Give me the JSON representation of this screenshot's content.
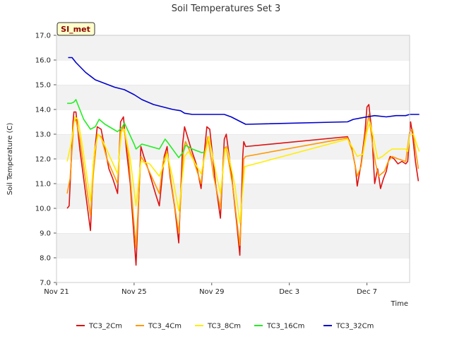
{
  "chart_data": {
    "type": "line",
    "title": "Soil Temperatures Set 3",
    "xlabel": "Time",
    "ylabel": "Soil Temperature (C)",
    "site_label": "SI_met",
    "x_ticks": [
      {
        "label": "Nov 21",
        "day": 0
      },
      {
        "label": "Nov 25",
        "day": 4
      },
      {
        "label": "Nov 29",
        "day": 8
      },
      {
        "label": "Dec 3",
        "day": 12
      },
      {
        "label": "Dec 7",
        "day": 16
      }
    ],
    "xlim_days": [
      0,
      18.2
    ],
    "x_reference_date": "2021-11-21",
    "ylim": [
      7.0,
      17.0
    ],
    "y_ticks": [
      "7.0",
      "8.0",
      "9.0",
      "10.0",
      "11.0",
      "12.0",
      "13.0",
      "14.0",
      "15.0",
      "16.0",
      "17.0"
    ],
    "grid": "horizontal bands",
    "legend_position": "bottom",
    "series": [
      {
        "name": "TC3_2Cm",
        "color": "#dd1111",
        "points": [
          [
            0.55,
            10.0
          ],
          [
            0.65,
            10.1
          ],
          [
            0.85,
            13.5
          ],
          [
            0.9,
            13.9
          ],
          [
            1.0,
            13.9
          ],
          [
            1.2,
            12.4
          ],
          [
            1.75,
            9.1
          ],
          [
            1.9,
            11.8
          ],
          [
            2.1,
            13.3
          ],
          [
            2.3,
            13.2
          ],
          [
            2.5,
            12.4
          ],
          [
            2.7,
            11.6
          ],
          [
            2.9,
            11.2
          ],
          [
            3.15,
            10.6
          ],
          [
            3.3,
            13.5
          ],
          [
            3.45,
            13.7
          ],
          [
            3.6,
            12.4
          ],
          [
            3.8,
            11.0
          ],
          [
            4.1,
            7.7
          ],
          [
            4.35,
            12.5
          ],
          [
            4.5,
            12.1
          ],
          [
            4.8,
            11.4
          ],
          [
            5.1,
            10.6
          ],
          [
            5.3,
            10.1
          ],
          [
            5.55,
            12.1
          ],
          [
            5.7,
            12.5
          ],
          [
            5.85,
            11.3
          ],
          [
            6.1,
            10.0
          ],
          [
            6.3,
            8.6
          ],
          [
            6.5,
            12.6
          ],
          [
            6.6,
            13.3
          ],
          [
            6.9,
            12.5
          ],
          [
            7.2,
            11.8
          ],
          [
            7.45,
            10.8
          ],
          [
            7.6,
            12.1
          ],
          [
            7.75,
            13.3
          ],
          [
            7.9,
            13.2
          ],
          [
            8.2,
            11.0
          ],
          [
            8.45,
            9.6
          ],
          [
            8.65,
            12.8
          ],
          [
            8.75,
            13.0
          ],
          [
            9.0,
            11.5
          ],
          [
            9.3,
            9.3
          ],
          [
            9.45,
            8.1
          ],
          [
            9.6,
            12.1
          ],
          [
            9.65,
            12.7
          ],
          [
            9.75,
            12.5
          ],
          [
            15.0,
            12.9
          ],
          [
            15.2,
            12.5
          ],
          [
            15.4,
            11.7
          ],
          [
            15.5,
            10.9
          ],
          [
            15.7,
            11.8
          ],
          [
            15.9,
            13.1
          ],
          [
            16.0,
            14.1
          ],
          [
            16.1,
            14.2
          ],
          [
            16.25,
            13.1
          ],
          [
            16.4,
            11.0
          ],
          [
            16.55,
            11.6
          ],
          [
            16.7,
            10.8
          ],
          [
            16.85,
            11.2
          ],
          [
            17.0,
            11.5
          ],
          [
            17.1,
            11.9
          ],
          [
            17.2,
            12.1
          ],
          [
            17.4,
            12.0
          ],
          [
            17.6,
            11.8
          ],
          [
            17.8,
            11.9
          ],
          [
            18.0,
            11.8
          ],
          [
            18.1,
            11.9
          ],
          [
            18.25,
            13.5
          ],
          [
            18.35,
            13.0
          ],
          [
            18.5,
            11.9
          ],
          [
            18.65,
            11.1
          ]
        ]
      },
      {
        "name": "TC3_4Cm",
        "color": "#ff9900",
        "points": [
          [
            0.55,
            10.6
          ],
          [
            0.7,
            11.2
          ],
          [
            0.9,
            13.5
          ],
          [
            1.0,
            13.6
          ],
          [
            1.2,
            12.8
          ],
          [
            1.75,
            9.7
          ],
          [
            1.9,
            11.4
          ],
          [
            2.1,
            13.0
          ],
          [
            2.3,
            12.9
          ],
          [
            2.6,
            12.0
          ],
          [
            3.15,
            11.0
          ],
          [
            3.3,
            13.1
          ],
          [
            3.45,
            13.3
          ],
          [
            3.7,
            12.2
          ],
          [
            4.1,
            8.4
          ],
          [
            4.35,
            12.1
          ],
          [
            4.6,
            11.8
          ],
          [
            5.3,
            10.6
          ],
          [
            5.5,
            11.9
          ],
          [
            5.7,
            12.3
          ],
          [
            6.0,
            10.6
          ],
          [
            6.3,
            9.0
          ],
          [
            6.55,
            12.4
          ],
          [
            6.65,
            12.7
          ],
          [
            7.0,
            12.1
          ],
          [
            7.45,
            11.0
          ],
          [
            7.65,
            12.3
          ],
          [
            7.8,
            12.9
          ],
          [
            8.1,
            11.3
          ],
          [
            8.45,
            10.0
          ],
          [
            8.65,
            12.4
          ],
          [
            8.75,
            12.5
          ],
          [
            9.1,
            10.8
          ],
          [
            9.45,
            8.5
          ],
          [
            9.65,
            12.0
          ],
          [
            9.75,
            12.1
          ],
          [
            15.0,
            12.85
          ],
          [
            15.25,
            12.3
          ],
          [
            15.5,
            11.3
          ],
          [
            15.7,
            11.7
          ],
          [
            15.9,
            12.9
          ],
          [
            16.1,
            13.8
          ],
          [
            16.3,
            12.5
          ],
          [
            16.45,
            11.8
          ],
          [
            16.6,
            11.3
          ],
          [
            16.9,
            11.5
          ],
          [
            17.1,
            11.9
          ],
          [
            17.3,
            12.1
          ],
          [
            17.6,
            12.0
          ],
          [
            18.0,
            11.9
          ],
          [
            18.2,
            13.1
          ],
          [
            18.35,
            13.2
          ],
          [
            18.5,
            12.4
          ],
          [
            18.65,
            11.6
          ]
        ]
      },
      {
        "name": "TC3_8Cm",
        "color": "#ffee00",
        "points": [
          [
            0.55,
            11.9
          ],
          [
            0.75,
            12.6
          ],
          [
            0.95,
            13.7
          ],
          [
            1.1,
            13.6
          ],
          [
            1.3,
            12.7
          ],
          [
            1.75,
            10.3
          ],
          [
            1.95,
            12.3
          ],
          [
            2.15,
            13.0
          ],
          [
            2.4,
            12.7
          ],
          [
            3.15,
            11.4
          ],
          [
            3.35,
            13.1
          ],
          [
            3.5,
            13.2
          ],
          [
            3.8,
            12.0
          ],
          [
            4.1,
            10.1
          ],
          [
            4.35,
            11.9
          ],
          [
            4.8,
            11.8
          ],
          [
            5.3,
            11.3
          ],
          [
            5.55,
            11.8
          ],
          [
            5.7,
            12.2
          ],
          [
            6.0,
            11.2
          ],
          [
            6.3,
            9.9
          ],
          [
            6.6,
            12.1
          ],
          [
            6.8,
            12.3
          ],
          [
            7.45,
            11.4
          ],
          [
            7.7,
            12.3
          ],
          [
            7.85,
            12.9
          ],
          [
            8.2,
            11.5
          ],
          [
            8.45,
            10.6
          ],
          [
            8.7,
            12.4
          ],
          [
            8.8,
            12.4
          ],
          [
            9.2,
            10.9
          ],
          [
            9.45,
            9.4
          ],
          [
            9.7,
            11.7
          ],
          [
            9.75,
            11.7
          ],
          [
            15.0,
            12.8
          ],
          [
            15.3,
            12.4
          ],
          [
            15.5,
            12.1
          ],
          [
            15.8,
            12.2
          ],
          [
            16.0,
            13.1
          ],
          [
            16.15,
            13.5
          ],
          [
            16.35,
            12.8
          ],
          [
            16.55,
            12.0
          ],
          [
            16.8,
            12.1
          ],
          [
            17.1,
            12.3
          ],
          [
            17.3,
            12.4
          ],
          [
            17.6,
            12.4
          ],
          [
            18.0,
            12.4
          ],
          [
            18.1,
            12.3
          ],
          [
            18.2,
            13.0
          ],
          [
            18.4,
            13.0
          ],
          [
            18.6,
            12.5
          ],
          [
            18.7,
            12.3
          ]
        ]
      },
      {
        "name": "TC3_16Cm",
        "color": "#22ee22",
        "points": [
          [
            0.55,
            14.25
          ],
          [
            0.75,
            14.25
          ],
          [
            0.9,
            14.3
          ],
          [
            1.0,
            14.4
          ],
          [
            1.1,
            14.2
          ],
          [
            1.4,
            13.6
          ],
          [
            1.75,
            13.2
          ],
          [
            2.0,
            13.3
          ],
          [
            2.2,
            13.6
          ],
          [
            2.5,
            13.4
          ],
          [
            3.15,
            13.1
          ],
          [
            3.4,
            13.3
          ],
          [
            3.5,
            13.45
          ],
          [
            4.0,
            12.6
          ],
          [
            4.1,
            12.4
          ],
          [
            4.4,
            12.6
          ],
          [
            5.3,
            12.4
          ],
          [
            5.6,
            12.8
          ],
          [
            5.7,
            12.7
          ],
          [
            6.3,
            12.05
          ],
          [
            6.55,
            12.3
          ],
          [
            6.65,
            12.55
          ],
          [
            7.0,
            12.4
          ],
          [
            7.5,
            12.25
          ],
          [
            7.65,
            12.3
          ]
        ]
      },
      {
        "name": "TC3_32Cm",
        "color": "#0000cc",
        "points": [
          [
            0.6,
            16.1
          ],
          [
            0.8,
            16.1
          ],
          [
            1.0,
            15.9
          ],
          [
            1.5,
            15.5
          ],
          [
            2.0,
            15.2
          ],
          [
            3.0,
            14.9
          ],
          [
            3.5,
            14.8
          ],
          [
            4.0,
            14.6
          ],
          [
            4.4,
            14.4
          ],
          [
            5.0,
            14.2
          ],
          [
            5.5,
            14.1
          ],
          [
            6.0,
            14.0
          ],
          [
            6.4,
            13.95
          ],
          [
            6.6,
            13.85
          ],
          [
            7.0,
            13.8
          ],
          [
            7.5,
            13.8
          ],
          [
            8.0,
            13.8
          ],
          [
            8.3,
            13.8
          ],
          [
            8.65,
            13.8
          ],
          [
            9.0,
            13.7
          ],
          [
            9.5,
            13.5
          ],
          [
            9.75,
            13.4
          ],
          [
            15.0,
            13.5
          ],
          [
            15.3,
            13.6
          ],
          [
            16.0,
            13.7
          ],
          [
            16.4,
            13.75
          ],
          [
            17.0,
            13.7
          ],
          [
            17.5,
            13.75
          ],
          [
            18.0,
            13.75
          ],
          [
            18.2,
            13.8
          ],
          [
            18.5,
            13.8
          ],
          [
            18.7,
            13.8
          ]
        ]
      }
    ]
  }
}
